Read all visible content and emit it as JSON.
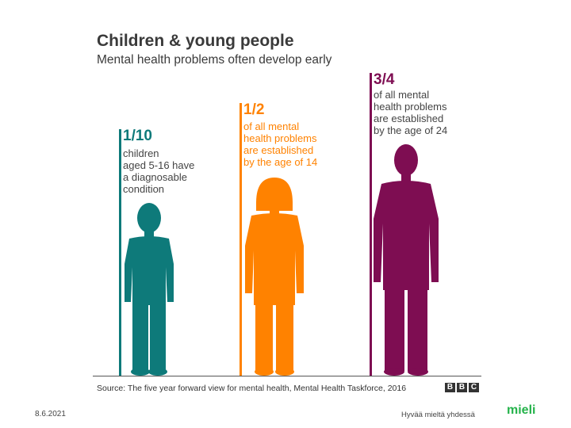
{
  "header": {
    "title": "Children & young people",
    "subtitle": "Mental health problems often develop early"
  },
  "groups": [
    {
      "fraction": "1/10",
      "description": "children\naged 5-16 have\na diagnosable\ncondition",
      "color": "#0e7a7a"
    },
    {
      "fraction": "1/2",
      "description": "of all mental\nhealth problems\nare established\nby the age of 14",
      "color": "#ff8200"
    },
    {
      "fraction": "3/4",
      "description": "of all mental\nhealth problems\nare established\nby the age of 24",
      "color": "#7e0d52"
    }
  ],
  "source": "Source: The five year forward view for mental health, Mental Health Taskforce, 2016",
  "bbc_logo": [
    "B",
    "B",
    "C"
  ],
  "footer": {
    "date": "8.6.2021",
    "slogan": "Hyvää mieltä yhdessä",
    "logo": "mieli",
    "logo_color": "#25b34b"
  }
}
